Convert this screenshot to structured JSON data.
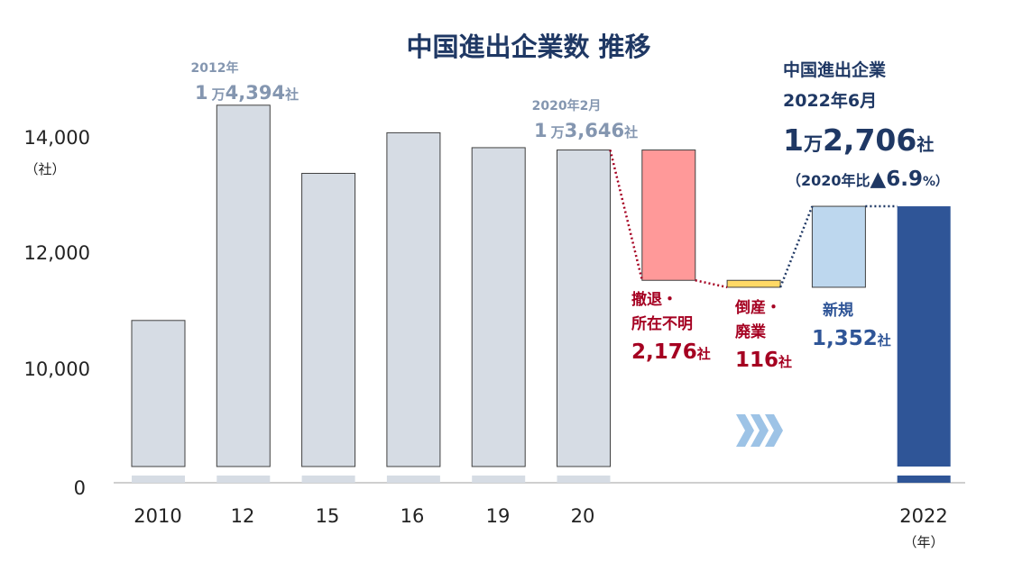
{
  "chart_data": {
    "type": "bar",
    "title": "中国進出企業数 推移",
    "ylabel": "（社）",
    "xlabel_unit": "（年）",
    "ylim": [
      9000,
      14500
    ],
    "yticks": [
      "10,000",
      "12,000",
      "14,000"
    ],
    "y_zero_label": "0",
    "categories": [
      "2010",
      "12",
      "15",
      "16",
      "19",
      "20",
      "",
      "",
      "",
      "2022"
    ],
    "bars": [
      {
        "category": "2010",
        "value": 10800,
        "kind": "history"
      },
      {
        "category": "12",
        "value": 14394,
        "kind": "history"
      },
      {
        "category": "15",
        "value": 13256,
        "kind": "history"
      },
      {
        "category": "16",
        "value": 13934,
        "kind": "history"
      },
      {
        "category": "19",
        "value": 13685,
        "kind": "history"
      },
      {
        "category": "20",
        "value": 13646,
        "kind": "history"
      },
      {
        "category": "撤退・所在不明",
        "base": 11470,
        "top": 13646,
        "kind": "decrease"
      },
      {
        "category": "倒産・廃業",
        "base": 11354,
        "top": 11470,
        "kind": "decrease-small"
      },
      {
        "category": "新規",
        "base": 11354,
        "top": 12706,
        "kind": "increase"
      },
      {
        "category": "2022",
        "value": 12706,
        "kind": "result"
      }
    ],
    "colors": {
      "history": "#d6dce4",
      "decrease": "#ff9999",
      "decrease-small": "#ffd966",
      "increase": "#bdd7ee",
      "result": "#2f5597"
    },
    "annotations": {
      "peak_2012": {
        "date": "2012年",
        "num_prefix": "1",
        "num_man": "万",
        "num_rest": "4,394",
        "unit": "社"
      },
      "value_2020": {
        "date": "2020年2月",
        "num_prefix": "1",
        "num_man": "万",
        "num_rest": "3,646",
        "unit": "社"
      },
      "withdrawal": {
        "label_line1": "撤退・",
        "label_line2": "所在不明",
        "value": "2,176",
        "unit": "社"
      },
      "bankruptcy": {
        "label_line1": "倒産・",
        "label_line2": "廃業",
        "value": "116",
        "unit": "社"
      },
      "new_entry": {
        "label": "新規",
        "value": "1,352",
        "unit": "社"
      },
      "result_2022": {
        "line1": "中国進出企業",
        "line2": "2022年6月",
        "num_prefix": "1",
        "num_man": "万",
        "num_rest": "2,706",
        "unit": "社",
        "change_open": "（2020年比",
        "change_value": "▲6.9",
        "change_pct": "%）"
      }
    }
  }
}
